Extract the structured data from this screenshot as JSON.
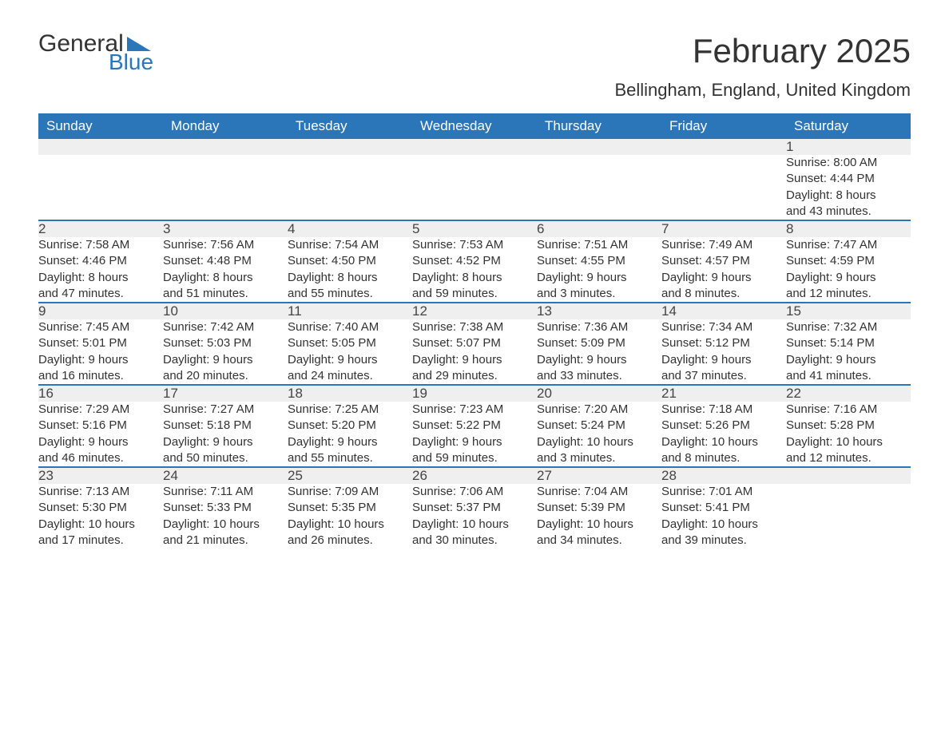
{
  "logo": {
    "word1": "General",
    "word2": "Blue",
    "accent_color": "#2a76b9"
  },
  "title": "February 2025",
  "location": "Bellingham, England, United Kingdom",
  "day_headers": [
    "Sunday",
    "Monday",
    "Tuesday",
    "Wednesday",
    "Thursday",
    "Friday",
    "Saturday"
  ],
  "colors": {
    "header_bg": "#2a76b9",
    "header_text": "#ffffff",
    "daynum_bg": "#efefef",
    "row_border": "#2a76b9",
    "body_text": "#333333",
    "page_bg": "#ffffff"
  },
  "weeks": [
    {
      "nums": [
        "",
        "",
        "",
        "",
        "",
        "",
        "1"
      ],
      "cells": [
        null,
        null,
        null,
        null,
        null,
        null,
        {
          "sunrise": "Sunrise: 8:00 AM",
          "sunset": "Sunset: 4:44 PM",
          "day1": "Daylight: 8 hours",
          "day2": "and 43 minutes."
        }
      ]
    },
    {
      "nums": [
        "2",
        "3",
        "4",
        "5",
        "6",
        "7",
        "8"
      ],
      "cells": [
        {
          "sunrise": "Sunrise: 7:58 AM",
          "sunset": "Sunset: 4:46 PM",
          "day1": "Daylight: 8 hours",
          "day2": "and 47 minutes."
        },
        {
          "sunrise": "Sunrise: 7:56 AM",
          "sunset": "Sunset: 4:48 PM",
          "day1": "Daylight: 8 hours",
          "day2": "and 51 minutes."
        },
        {
          "sunrise": "Sunrise: 7:54 AM",
          "sunset": "Sunset: 4:50 PM",
          "day1": "Daylight: 8 hours",
          "day2": "and 55 minutes."
        },
        {
          "sunrise": "Sunrise: 7:53 AM",
          "sunset": "Sunset: 4:52 PM",
          "day1": "Daylight: 8 hours",
          "day2": "and 59 minutes."
        },
        {
          "sunrise": "Sunrise: 7:51 AM",
          "sunset": "Sunset: 4:55 PM",
          "day1": "Daylight: 9 hours",
          "day2": "and 3 minutes."
        },
        {
          "sunrise": "Sunrise: 7:49 AM",
          "sunset": "Sunset: 4:57 PM",
          "day1": "Daylight: 9 hours",
          "day2": "and 8 minutes."
        },
        {
          "sunrise": "Sunrise: 7:47 AM",
          "sunset": "Sunset: 4:59 PM",
          "day1": "Daylight: 9 hours",
          "day2": "and 12 minutes."
        }
      ]
    },
    {
      "nums": [
        "9",
        "10",
        "11",
        "12",
        "13",
        "14",
        "15"
      ],
      "cells": [
        {
          "sunrise": "Sunrise: 7:45 AM",
          "sunset": "Sunset: 5:01 PM",
          "day1": "Daylight: 9 hours",
          "day2": "and 16 minutes."
        },
        {
          "sunrise": "Sunrise: 7:42 AM",
          "sunset": "Sunset: 5:03 PM",
          "day1": "Daylight: 9 hours",
          "day2": "and 20 minutes."
        },
        {
          "sunrise": "Sunrise: 7:40 AM",
          "sunset": "Sunset: 5:05 PM",
          "day1": "Daylight: 9 hours",
          "day2": "and 24 minutes."
        },
        {
          "sunrise": "Sunrise: 7:38 AM",
          "sunset": "Sunset: 5:07 PM",
          "day1": "Daylight: 9 hours",
          "day2": "and 29 minutes."
        },
        {
          "sunrise": "Sunrise: 7:36 AM",
          "sunset": "Sunset: 5:09 PM",
          "day1": "Daylight: 9 hours",
          "day2": "and 33 minutes."
        },
        {
          "sunrise": "Sunrise: 7:34 AM",
          "sunset": "Sunset: 5:12 PM",
          "day1": "Daylight: 9 hours",
          "day2": "and 37 minutes."
        },
        {
          "sunrise": "Sunrise: 7:32 AM",
          "sunset": "Sunset: 5:14 PM",
          "day1": "Daylight: 9 hours",
          "day2": "and 41 minutes."
        }
      ]
    },
    {
      "nums": [
        "16",
        "17",
        "18",
        "19",
        "20",
        "21",
        "22"
      ],
      "cells": [
        {
          "sunrise": "Sunrise: 7:29 AM",
          "sunset": "Sunset: 5:16 PM",
          "day1": "Daylight: 9 hours",
          "day2": "and 46 minutes."
        },
        {
          "sunrise": "Sunrise: 7:27 AM",
          "sunset": "Sunset: 5:18 PM",
          "day1": "Daylight: 9 hours",
          "day2": "and 50 minutes."
        },
        {
          "sunrise": "Sunrise: 7:25 AM",
          "sunset": "Sunset: 5:20 PM",
          "day1": "Daylight: 9 hours",
          "day2": "and 55 minutes."
        },
        {
          "sunrise": "Sunrise: 7:23 AM",
          "sunset": "Sunset: 5:22 PM",
          "day1": "Daylight: 9 hours",
          "day2": "and 59 minutes."
        },
        {
          "sunrise": "Sunrise: 7:20 AM",
          "sunset": "Sunset: 5:24 PM",
          "day1": "Daylight: 10 hours",
          "day2": "and 3 minutes."
        },
        {
          "sunrise": "Sunrise: 7:18 AM",
          "sunset": "Sunset: 5:26 PM",
          "day1": "Daylight: 10 hours",
          "day2": "and 8 minutes."
        },
        {
          "sunrise": "Sunrise: 7:16 AM",
          "sunset": "Sunset: 5:28 PM",
          "day1": "Daylight: 10 hours",
          "day2": "and 12 minutes."
        }
      ]
    },
    {
      "nums": [
        "23",
        "24",
        "25",
        "26",
        "27",
        "28",
        ""
      ],
      "cells": [
        {
          "sunrise": "Sunrise: 7:13 AM",
          "sunset": "Sunset: 5:30 PM",
          "day1": "Daylight: 10 hours",
          "day2": "and 17 minutes."
        },
        {
          "sunrise": "Sunrise: 7:11 AM",
          "sunset": "Sunset: 5:33 PM",
          "day1": "Daylight: 10 hours",
          "day2": "and 21 minutes."
        },
        {
          "sunrise": "Sunrise: 7:09 AM",
          "sunset": "Sunset: 5:35 PM",
          "day1": "Daylight: 10 hours",
          "day2": "and 26 minutes."
        },
        {
          "sunrise": "Sunrise: 7:06 AM",
          "sunset": "Sunset: 5:37 PM",
          "day1": "Daylight: 10 hours",
          "day2": "and 30 minutes."
        },
        {
          "sunrise": "Sunrise: 7:04 AM",
          "sunset": "Sunset: 5:39 PM",
          "day1": "Daylight: 10 hours",
          "day2": "and 34 minutes."
        },
        {
          "sunrise": "Sunrise: 7:01 AM",
          "sunset": "Sunset: 5:41 PM",
          "day1": "Daylight: 10 hours",
          "day2": "and 39 minutes."
        },
        null
      ]
    }
  ]
}
